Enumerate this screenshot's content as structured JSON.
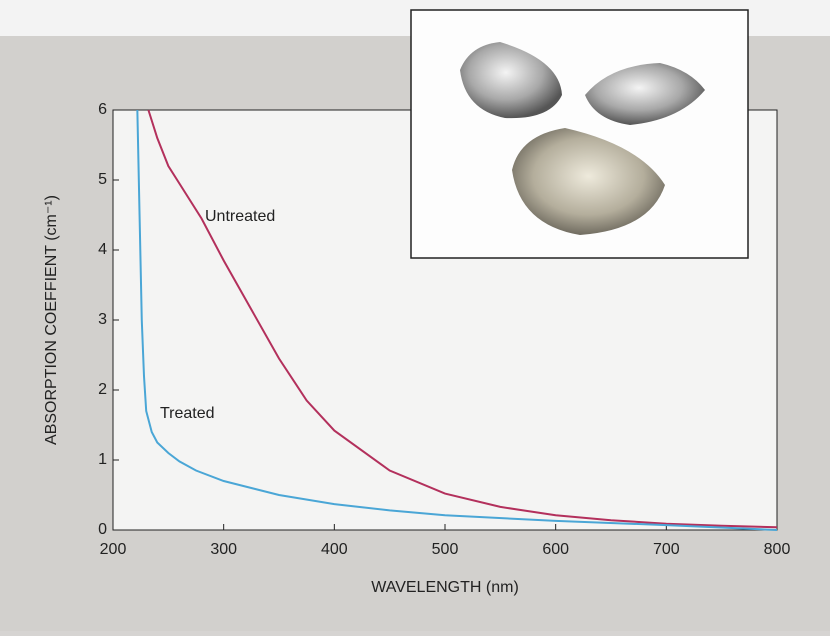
{
  "chart_data": {
    "type": "line",
    "x_label": "WAVELENGTH (nm)",
    "y_label": "ABSORPTION COEFFIENT (cm⁻¹)",
    "xlim": [
      200,
      800
    ],
    "xticks": [
      200,
      300,
      400,
      500,
      600,
      700,
      800
    ],
    "ylim": [
      0,
      6
    ],
    "yticks": [
      0,
      1,
      2,
      3,
      4,
      5,
      6
    ],
    "series": [
      {
        "name": "Untreated",
        "color": "#b3305c",
        "x": [
          232,
          240,
          250,
          260,
          270,
          280,
          300,
          325,
          350,
          375,
          400,
          450,
          500,
          550,
          600,
          650,
          700,
          750,
          800
        ],
        "values": [
          6,
          5.6,
          5.2,
          4.95,
          4.7,
          4.45,
          3.85,
          3.15,
          2.45,
          1.85,
          1.42,
          0.85,
          0.52,
          0.33,
          0.21,
          0.14,
          0.09,
          0.06,
          0.04
        ]
      },
      {
        "name": "Treated",
        "color": "#4aa6d6",
        "x": [
          222,
          224,
          226,
          228,
          230,
          235,
          240,
          250,
          260,
          275,
          300,
          350,
          400,
          450,
          500,
          600,
          700,
          800
        ],
        "values": [
          6,
          4.5,
          3,
          2.2,
          1.7,
          1.4,
          1.25,
          1.1,
          0.98,
          0.85,
          0.7,
          0.5,
          0.37,
          0.28,
          0.21,
          0.13,
          0.07,
          0
        ]
      }
    ]
  }
}
